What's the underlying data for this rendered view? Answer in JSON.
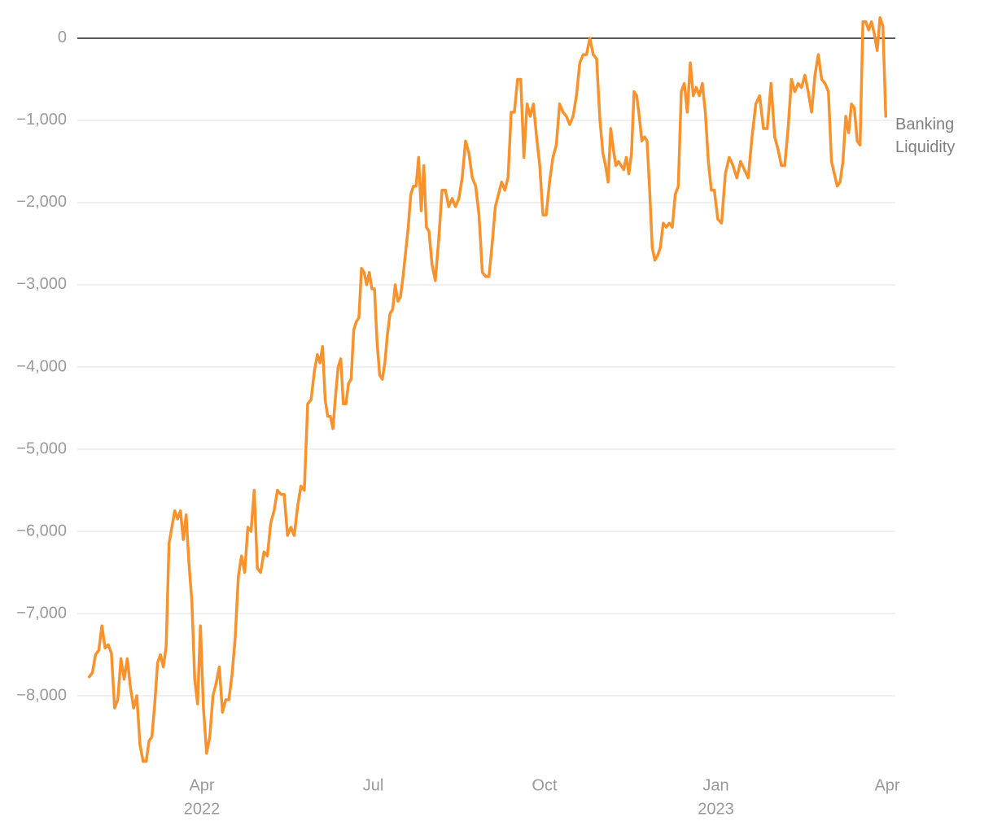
{
  "chart_data": {
    "type": "line",
    "x": [
      "2022-02",
      "2022-02",
      "2022-02",
      "2022-02",
      "2022-02",
      "2022-02",
      "2022-02",
      "2022-02",
      "2022-02",
      "2022-02",
      "2022-02",
      "2022-02",
      "2022-02",
      "2022-02",
      "2022-02",
      "2022-02",
      "2022-02",
      "2022-02",
      "2022-03",
      "2022-03",
      "2022-03",
      "2022-03",
      "2022-03",
      "2022-03",
      "2022-03",
      "2022-03",
      "2022-03",
      "2022-03",
      "2022-03",
      "2022-03",
      "2022-03",
      "2022-03",
      "2022-03",
      "2022-03",
      "2022-03",
      "2022-03",
      "2022-03",
      "2022-03",
      "2022-04",
      "2022-04",
      "2022-04",
      "2022-04",
      "2022-04",
      "2022-04",
      "2022-04",
      "2022-04",
      "2022-04",
      "2022-04",
      "2022-04",
      "2022-04",
      "2022-04",
      "2022-04",
      "2022-04",
      "2022-04",
      "2022-04",
      "2022-04",
      "2022-05",
      "2022-05",
      "2022-05",
      "2022-05",
      "2022-05",
      "2022-05",
      "2022-05",
      "2022-05",
      "2022-05",
      "2022-05",
      "2022-05",
      "2022-05",
      "2022-05",
      "2022-05",
      "2022-05",
      "2022-05",
      "2022-05",
      "2022-06",
      "2022-06",
      "2022-06",
      "2022-06",
      "2022-06",
      "2022-06",
      "2022-06",
      "2022-06",
      "2022-06",
      "2022-06",
      "2022-06",
      "2022-06",
      "2022-06",
      "2022-06",
      "2022-06",
      "2022-06",
      "2022-06",
      "2022-06",
      "2022-06",
      "2022-06",
      "2022-06",
      "2022-06",
      "2022-07",
      "2022-07",
      "2022-07",
      "2022-07",
      "2022-07",
      "2022-07",
      "2022-07",
      "2022-07",
      "2022-07",
      "2022-07",
      "2022-07",
      "2022-07",
      "2022-07",
      "2022-07",
      "2022-07",
      "2022-07",
      "2022-07",
      "2022-07",
      "2022-07",
      "2022-07",
      "2022-07",
      "2022-07",
      "2022-08",
      "2022-08",
      "2022-08",
      "2022-08",
      "2022-08",
      "2022-08",
      "2022-08",
      "2022-08",
      "2022-08",
      "2022-08",
      "2022-08",
      "2022-08",
      "2022-08",
      "2022-08",
      "2022-08",
      "2022-08",
      "2022-08",
      "2022-09",
      "2022-09",
      "2022-09",
      "2022-09",
      "2022-09",
      "2022-09",
      "2022-09",
      "2022-09",
      "2022-09",
      "2022-09",
      "2022-09",
      "2022-09",
      "2022-09",
      "2022-09",
      "2022-09",
      "2022-09",
      "2022-09",
      "2022-09",
      "2022-10",
      "2022-10",
      "2022-10",
      "2022-10",
      "2022-10",
      "2022-10",
      "2022-10",
      "2022-10",
      "2022-10",
      "2022-10",
      "2022-10",
      "2022-10",
      "2022-10",
      "2022-10",
      "2022-10",
      "2022-10",
      "2022-10",
      "2022-11",
      "2022-11",
      "2022-11",
      "2022-11",
      "2022-11",
      "2022-11",
      "2022-11",
      "2022-11",
      "2022-11",
      "2022-11",
      "2022-11",
      "2022-11",
      "2022-11",
      "2022-11",
      "2022-11",
      "2022-11",
      "2022-11",
      "2022-11",
      "2022-11",
      "2022-11",
      "2022-11",
      "2022-11",
      "2022-12",
      "2022-12",
      "2022-12",
      "2022-12",
      "2022-12",
      "2022-12",
      "2022-12",
      "2022-12",
      "2022-12",
      "2022-12",
      "2022-12",
      "2022-12",
      "2022-12",
      "2022-12",
      "2022-12",
      "2022-12",
      "2022-12",
      "2022-12",
      "2022-12",
      "2023-01",
      "2023-01",
      "2023-01",
      "2023-01",
      "2023-01",
      "2023-01",
      "2023-01",
      "2023-01",
      "2023-01",
      "2023-01",
      "2023-01",
      "2023-01",
      "2023-01",
      "2023-01",
      "2023-01",
      "2023-02",
      "2023-02",
      "2023-02",
      "2023-02",
      "2023-02",
      "2023-02",
      "2023-02",
      "2023-02",
      "2023-02",
      "2023-02",
      "2023-02",
      "2023-02",
      "2023-02",
      "2023-02",
      "2023-02",
      "2023-02",
      "2023-02",
      "2023-03",
      "2023-03",
      "2023-03",
      "2023-03",
      "2023-03",
      "2023-03",
      "2023-03",
      "2023-03",
      "2023-03",
      "2023-03",
      "2023-03",
      "2023-03",
      "2023-03",
      "2023-03",
      "2023-03",
      "2023-03",
      "2023-03",
      "2023-03",
      "2023-03",
      "2023-03"
    ],
    "series": [
      {
        "name": "Banking Liquidity",
        "color": "#f7922c",
        "values": [
          -7770,
          -7720,
          -7500,
          -7450,
          -7150,
          -7420,
          -7380,
          -7480,
          -8150,
          -8050,
          -7550,
          -7800,
          -7550,
          -7900,
          -8150,
          -8000,
          -8600,
          -8800,
          -8800,
          -8550,
          -8500,
          -8100,
          -7600,
          -7500,
          -7650,
          -7400,
          -6150,
          -5950,
          -5750,
          -5850,
          -5750,
          -6100,
          -5800,
          -6400,
          -6850,
          -7800,
          -8100,
          -7150,
          -8150,
          -8700,
          -8500,
          -8000,
          -7850,
          -7650,
          -8200,
          -8050,
          -8050,
          -7750,
          -7300,
          -6550,
          -6300,
          -6500,
          -5950,
          -6000,
          -5500,
          -6450,
          -6500,
          -6250,
          -6300,
          -5900,
          -5750,
          -5500,
          -5550,
          -5550,
          -6050,
          -5950,
          -6050,
          -5700,
          -5450,
          -5500,
          -4450,
          -4400,
          -4050,
          -3850,
          -3950,
          -3750,
          -4400,
          -4600,
          -4600,
          -4750,
          -4350,
          -4000,
          -3900,
          -4450,
          -4450,
          -4200,
          -4150,
          -3550,
          -3450,
          -3400,
          -2800,
          -2850,
          -3000,
          -2850,
          -3050,
          -3050,
          -3700,
          -4100,
          -4150,
          -3950,
          -3600,
          -3350,
          -3300,
          -3000,
          -3200,
          -3150,
          -2900,
          -2600,
          -2300,
          -1900,
          -1800,
          -1800,
          -1450,
          -2100,
          -1550,
          -2300,
          -2350,
          -2750,
          -2950,
          -2450,
          -1850,
          -1850,
          -2050,
          -1950,
          -2050,
          -1950,
          -1700,
          -1250,
          -1400,
          -1700,
          -1800,
          -2150,
          -2850,
          -2900,
          -2900,
          -2500,
          -2050,
          -1900,
          -1750,
          -1850,
          -1700,
          -900,
          -900,
          -500,
          -500,
          -1450,
          -800,
          -950,
          -800,
          -1200,
          -1550,
          -2150,
          -2150,
          -1750,
          -1450,
          -1300,
          -800,
          -900,
          -950,
          -1050,
          -950,
          -700,
          -300,
          -200,
          -200,
          0,
          -200,
          -250,
          -1000,
          -1400,
          -1550,
          -1750,
          -1100,
          -1350,
          -1550,
          -1500,
          -1550,
          -1600,
          -1450,
          -1650,
          -1400,
          -650,
          -700,
          -950,
          -1250,
          -1200,
          -1250,
          -1850,
          -2550,
          -2700,
          -2650,
          -2550,
          -2250,
          -2300,
          -2250,
          -2300,
          -1900,
          -1800,
          -650,
          -550,
          -900,
          -300,
          -700,
          -600,
          -700,
          -550,
          -900,
          -1500,
          -1850,
          -1850,
          -2200,
          -2250,
          -1650,
          -1450,
          -1550,
          -1700,
          -1500,
          -1600,
          -1700,
          -1200,
          -800,
          -700,
          -1100,
          -1100,
          -550,
          -1200,
          -1350,
          -1550,
          -1550,
          -1100,
          -500,
          -650,
          -550,
          -600,
          -450,
          -650,
          -900,
          -450,
          -200,
          -500,
          -550,
          -650,
          -1500,
          -1650,
          -1800,
          -1750,
          -1500,
          -950,
          -1150,
          -800,
          -850,
          -1250,
          -1300,
          200,
          200,
          100,
          200,
          50,
          -150,
          250,
          150,
          -950
        ]
      }
    ],
    "xlim": [
      "2022-01",
      "2023-04"
    ],
    "xticks": [
      {
        "value": "2022-04",
        "label": "Apr"
      },
      {
        "value": "2022-07",
        "label": "Jul"
      },
      {
        "value": "2022-10",
        "label": "Oct"
      },
      {
        "value": "2023-01",
        "label": "Jan"
      },
      {
        "value": "2023-04",
        "label": "Apr"
      }
    ],
    "xsublabels": [
      {
        "value": "2022-04",
        "label": "2022"
      },
      {
        "value": "2023-01",
        "label": "2023"
      }
    ],
    "ylim": [
      -8900,
      450
    ],
    "yticks": [
      0,
      {
        "value": -1000,
        "label": "−1,000"
      },
      {
        "value": -2000,
        "label": "−2,000"
      },
      {
        "value": -3000,
        "label": "−3,000"
      },
      {
        "value": -4000,
        "label": "−4,000"
      },
      {
        "value": -5000,
        "label": "−5,000"
      },
      {
        "value": -6000,
        "label": "−6,000"
      },
      {
        "value": -7000,
        "label": "−7,000"
      },
      {
        "value": -8000,
        "label": "−8,000"
      }
    ],
    "grid": true,
    "zero_line": true
  }
}
